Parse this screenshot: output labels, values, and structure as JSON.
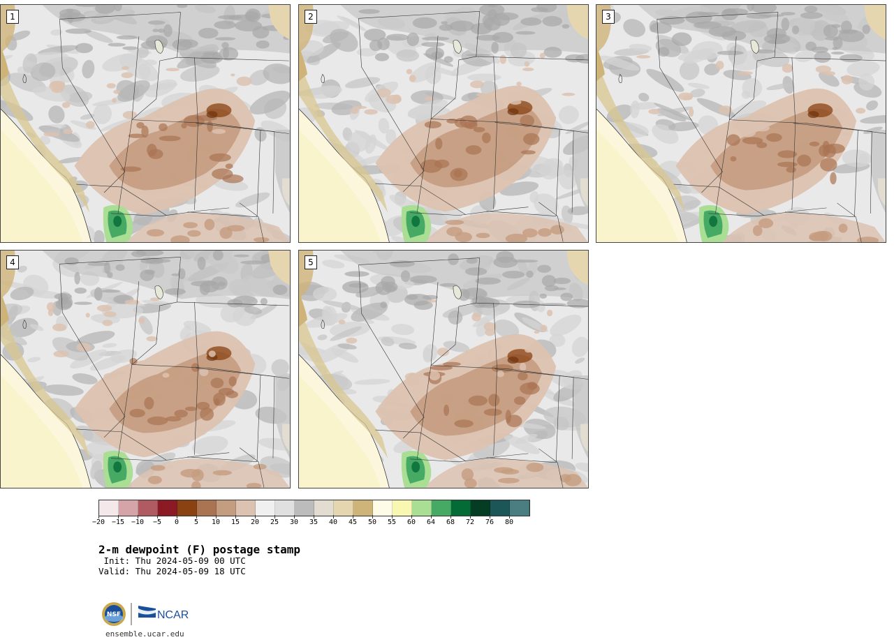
{
  "panels": [
    {
      "label": "1"
    },
    {
      "label": "2"
    },
    {
      "label": "3"
    },
    {
      "label": "4"
    },
    {
      "label": "5"
    }
  ],
  "colorbar": {
    "colors": [
      "#f4e8ea",
      "#d4a4a8",
      "#b05a62",
      "#8c1a24",
      "#8a4212",
      "#aa7452",
      "#c49c80",
      "#dcc2b0",
      "#f0f0f0",
      "#e0e0e0",
      "#bcbcbc",
      "#e2ddd0",
      "#e6d6b0",
      "#cfb47a",
      "#fefbe6",
      "#f8f8b2",
      "#aade94",
      "#46aa64",
      "#046a36",
      "#053d24",
      "#1c5656",
      "#4a7e80"
    ],
    "ticks": [
      "−20",
      "−15",
      "−10",
      "−5",
      "0",
      "5",
      "10",
      "15",
      "20",
      "25",
      "30",
      "35",
      "40",
      "45",
      "50",
      "55",
      "60",
      "64",
      "68",
      "72",
      "76",
      "80"
    ]
  },
  "title": "2-m dewpoint (F) postage stamp",
  "init": " Init: Thu 2024-05-09 00 UTC",
  "valid": "Valid: Thu 2024-05-09 18 UTC",
  "logos": {
    "nsf": "NSF",
    "ncar": "NCAR"
  },
  "url": "ensemble.ucar.edu"
}
